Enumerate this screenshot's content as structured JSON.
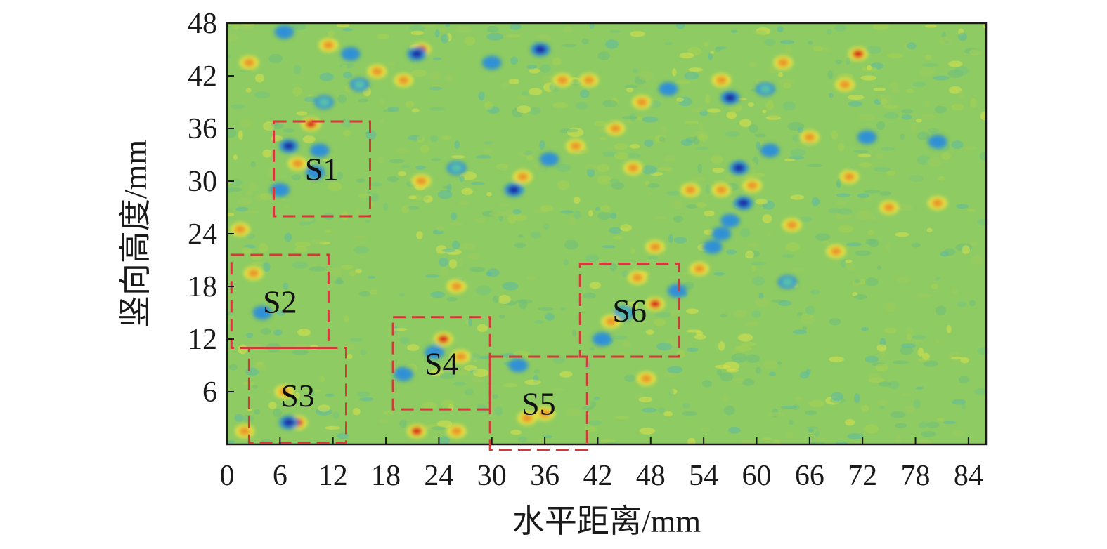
{
  "chart_data": {
    "type": "heatmap",
    "xlabel": "水平距离/mm",
    "ylabel": "竖向高度/mm",
    "xlim": [
      0,
      86
    ],
    "ylim": [
      0,
      48
    ],
    "x_ticks": [
      0,
      6,
      12,
      18,
      24,
      30,
      36,
      42,
      48,
      54,
      60,
      66,
      72,
      78,
      84
    ],
    "y_ticks": [
      6,
      12,
      18,
      24,
      30,
      36,
      42,
      48
    ],
    "x_tick_labels": [
      "0",
      "6",
      "12",
      "18",
      "24",
      "30",
      "36",
      "42",
      "48",
      "54",
      "60",
      "66",
      "72",
      "78",
      "84"
    ],
    "y_tick_labels": [
      "6",
      "12",
      "18",
      "24",
      "30",
      "36",
      "42",
      "48"
    ],
    "grid": false,
    "colormap": [
      "#1f2fa8",
      "#2f8fd8",
      "#58c0a8",
      "#8fc85a",
      "#f0e640",
      "#e8962a",
      "#d82a1e"
    ],
    "background_color": "#8ecb62",
    "region_color": "#d23a3a",
    "regions": [
      {
        "label": "S1",
        "x0": 5.3,
        "x1": 16.2,
        "y0": 26.0,
        "y1": 36.8
      },
      {
        "label": "S2",
        "x0": 0.5,
        "x1": 11.5,
        "y0": 11.0,
        "y1": 21.6
      },
      {
        "label": "S3",
        "x0": 2.5,
        "x1": 13.5,
        "y0": 0.2,
        "y1": 11.0
      },
      {
        "label": "S4",
        "x0": 18.8,
        "x1": 29.8,
        "y0": 4.0,
        "y1": 14.5
      },
      {
        "label": "S5",
        "x0": 29.8,
        "x1": 40.8,
        "y0": -0.6,
        "y1": 10.0
      },
      {
        "label": "S6",
        "x0": 40.0,
        "x1": 51.2,
        "y0": 10.0,
        "y1": 20.6
      }
    ],
    "hotspots": [
      {
        "x": 9.5,
        "y": 36.5,
        "v": 0.95
      },
      {
        "x": 8.0,
        "y": 32.0,
        "v": 0.9
      },
      {
        "x": 10.5,
        "y": 33.5,
        "v": 0.1
      },
      {
        "x": 7.0,
        "y": 34.0,
        "v": 0.05
      },
      {
        "x": 10.0,
        "y": 31.0,
        "v": 0.2
      },
      {
        "x": 6.0,
        "y": 29.0,
        "v": 0.2
      },
      {
        "x": 22.0,
        "y": 45.0,
        "v": 0.95
      },
      {
        "x": 21.5,
        "y": 44.5,
        "v": 0.05
      },
      {
        "x": 17.0,
        "y": 42.5,
        "v": 0.9
      },
      {
        "x": 20.0,
        "y": 41.5,
        "v": 0.9
      },
      {
        "x": 11.0,
        "y": 39.0,
        "v": 0.3
      },
      {
        "x": 15.0,
        "y": 41.0,
        "v": 0.25
      },
      {
        "x": 30.0,
        "y": 43.5,
        "v": 0.1
      },
      {
        "x": 35.5,
        "y": 45.0,
        "v": 0.05
      },
      {
        "x": 38.0,
        "y": 41.5,
        "v": 0.85
      },
      {
        "x": 41.0,
        "y": 41.5,
        "v": 0.9
      },
      {
        "x": 47.0,
        "y": 39.0,
        "v": 0.8
      },
      {
        "x": 50.0,
        "y": 40.5,
        "v": 0.2
      },
      {
        "x": 56.0,
        "y": 41.5,
        "v": 0.9
      },
      {
        "x": 57.0,
        "y": 39.5,
        "v": 0.05
      },
      {
        "x": 61.0,
        "y": 40.5,
        "v": 0.3
      },
      {
        "x": 63.0,
        "y": 43.5,
        "v": 0.9
      },
      {
        "x": 71.5,
        "y": 44.5,
        "v": 0.95
      },
      {
        "x": 70.0,
        "y": 41.0,
        "v": 0.85
      },
      {
        "x": 39.5,
        "y": 34.0,
        "v": 0.9
      },
      {
        "x": 36.5,
        "y": 32.5,
        "v": 0.2
      },
      {
        "x": 33.5,
        "y": 30.5,
        "v": 0.9
      },
      {
        "x": 32.5,
        "y": 29.0,
        "v": 0.05
      },
      {
        "x": 26.0,
        "y": 31.5,
        "v": 0.3
      },
      {
        "x": 22.0,
        "y": 30.0,
        "v": 0.75
      },
      {
        "x": 46.0,
        "y": 31.5,
        "v": 0.8
      },
      {
        "x": 44.0,
        "y": 36.0,
        "v": 0.75
      },
      {
        "x": 52.5,
        "y": 29.0,
        "v": 0.85
      },
      {
        "x": 56.0,
        "y": 29.0,
        "v": 0.8
      },
      {
        "x": 58.5,
        "y": 27.5,
        "v": 0.05
      },
      {
        "x": 59.5,
        "y": 29.5,
        "v": 0.9
      },
      {
        "x": 58.0,
        "y": 31.5,
        "v": 0.05
      },
      {
        "x": 61.5,
        "y": 33.5,
        "v": 0.1
      },
      {
        "x": 56.0,
        "y": 24.0,
        "v": 0.1
      },
      {
        "x": 55.0,
        "y": 22.5,
        "v": 0.2
      },
      {
        "x": 53.5,
        "y": 20.0,
        "v": 0.85
      },
      {
        "x": 57.0,
        "y": 25.5,
        "v": 0.2
      },
      {
        "x": 64.0,
        "y": 25.0,
        "v": 0.8
      },
      {
        "x": 70.5,
        "y": 30.5,
        "v": 0.75
      },
      {
        "x": 72.5,
        "y": 35.0,
        "v": 0.2
      },
      {
        "x": 80.5,
        "y": 34.5,
        "v": 0.1
      },
      {
        "x": 80.5,
        "y": 27.5,
        "v": 0.85
      },
      {
        "x": 75.0,
        "y": 27.0,
        "v": 0.8
      },
      {
        "x": 48.5,
        "y": 16.0,
        "v": 0.95
      },
      {
        "x": 45.0,
        "y": 15.0,
        "v": 0.25
      },
      {
        "x": 43.5,
        "y": 14.0,
        "v": 0.85
      },
      {
        "x": 42.5,
        "y": 12.0,
        "v": 0.15
      },
      {
        "x": 51.0,
        "y": 17.5,
        "v": 0.2
      },
      {
        "x": 46.5,
        "y": 19.0,
        "v": 0.85
      },
      {
        "x": 47.5,
        "y": 7.5,
        "v": 0.85
      },
      {
        "x": 24.5,
        "y": 12.0,
        "v": 0.95
      },
      {
        "x": 23.5,
        "y": 10.5,
        "v": 0.1
      },
      {
        "x": 26.5,
        "y": 10.0,
        "v": 0.85
      },
      {
        "x": 26.0,
        "y": 18.0,
        "v": 0.9
      },
      {
        "x": 20.0,
        "y": 8.0,
        "v": 0.2
      },
      {
        "x": 21.5,
        "y": 1.5,
        "v": 0.95
      },
      {
        "x": 26.0,
        "y": 1.5,
        "v": 0.9
      },
      {
        "x": 34.0,
        "y": 3.0,
        "v": 0.85
      },
      {
        "x": 36.0,
        "y": 3.5,
        "v": 0.9
      },
      {
        "x": 33.0,
        "y": 9.0,
        "v": 0.2
      },
      {
        "x": 8.0,
        "y": 2.5,
        "v": 0.95
      },
      {
        "x": 7.0,
        "y": 2.5,
        "v": 0.05
      },
      {
        "x": 2.0,
        "y": 1.5,
        "v": 0.85
      },
      {
        "x": 6.5,
        "y": 6.0,
        "v": 0.8
      },
      {
        "x": 3.0,
        "y": 19.5,
        "v": 0.85
      },
      {
        "x": 4.0,
        "y": 15.0,
        "v": 0.2
      },
      {
        "x": 1.5,
        "y": 24.5,
        "v": 0.9
      },
      {
        "x": 2.5,
        "y": 43.5,
        "v": 0.85
      },
      {
        "x": 11.5,
        "y": 45.5,
        "v": 0.9
      },
      {
        "x": 6.5,
        "y": 47.0,
        "v": 0.1
      },
      {
        "x": 14.0,
        "y": 44.5,
        "v": 0.2
      },
      {
        "x": 48.5,
        "y": 22.5,
        "v": 0.85
      },
      {
        "x": 66.0,
        "y": 35.0,
        "v": 0.8
      },
      {
        "x": 69.0,
        "y": 22.0,
        "v": 0.75
      },
      {
        "x": 63.5,
        "y": 18.5,
        "v": 0.25
      }
    ]
  }
}
